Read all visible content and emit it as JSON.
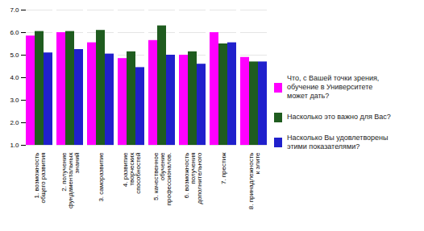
{
  "chart_data": {
    "type": "bar",
    "categories": [
      "1. возможность\nобщего развития",
      "2. получение\nфундаментальных\nзнаний",
      "3. саморазвитие",
      "4. развитие\nтворческих\nспособностей",
      "5. качественное\nобучение\nпрофессионалов.",
      "6. возможность\nполучения\nдополнительного",
      "7. престиж",
      "8. принадлежность\nк элите"
    ],
    "series": [
      {
        "name": "Что, с Вашей точки зрения,\nобучение в Университете\nможет дать?",
        "color": "#FF00FF",
        "values": [
          5.85,
          6.0,
          5.55,
          4.85,
          5.65,
          5.0,
          6.0,
          4.9
        ]
      },
      {
        "name": "Насколько это важно для Вас?",
        "color": "#1F5C1F",
        "values": [
          6.05,
          6.05,
          6.1,
          5.15,
          6.3,
          5.15,
          5.5,
          4.7
        ]
      },
      {
        "name": "Насколько Вы удовлетворены\nэтими показателями?",
        "color": "#2020CC",
        "values": [
          5.1,
          5.25,
          5.05,
          4.45,
          5.0,
          4.6,
          5.55,
          4.7
        ]
      }
    ],
    "ylim": [
      1,
      7
    ],
    "yticks": [
      1,
      2,
      3,
      4,
      5,
      6,
      7
    ],
    "grid": true,
    "legend": "right"
  }
}
